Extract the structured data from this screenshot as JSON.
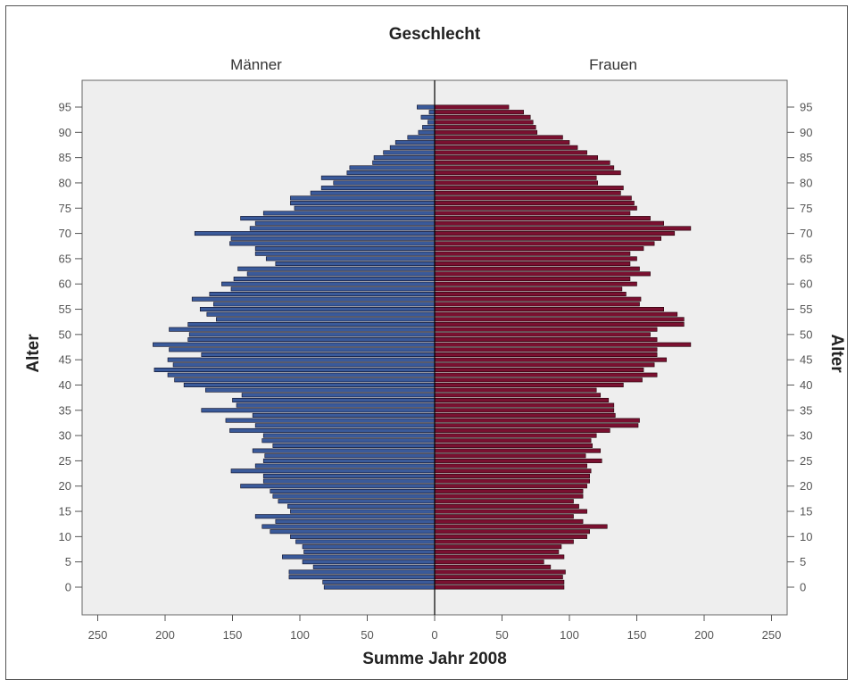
{
  "chart_data": {
    "type": "bar",
    "orientation": "horizontal-population-pyramid",
    "title": "Geschlecht",
    "xlabel": "Summe Jahr 2008",
    "ylabel": "Alter",
    "xlim": [
      0,
      250
    ],
    "ylim": [
      0,
      95
    ],
    "x_ticks": [
      "250",
      "200",
      "150",
      "100",
      "50",
      "0",
      "50",
      "100",
      "150",
      "200",
      "250"
    ],
    "y_ticks": [
      "0",
      "5",
      "10",
      "15",
      "20",
      "25",
      "30",
      "35",
      "40",
      "45",
      "50",
      "55",
      "60",
      "65",
      "70",
      "75",
      "80",
      "85",
      "90",
      "95"
    ],
    "categories": [
      0,
      1,
      2,
      3,
      4,
      5,
      6,
      7,
      8,
      9,
      10,
      11,
      12,
      13,
      14,
      15,
      16,
      17,
      18,
      19,
      20,
      21,
      22,
      23,
      24,
      25,
      26,
      27,
      28,
      29,
      30,
      31,
      32,
      33,
      34,
      35,
      36,
      37,
      38,
      39,
      40,
      41,
      42,
      43,
      44,
      45,
      46,
      47,
      48,
      49,
      50,
      51,
      52,
      53,
      54,
      55,
      56,
      57,
      58,
      59,
      60,
      61,
      62,
      63,
      64,
      65,
      66,
      67,
      68,
      69,
      70,
      71,
      72,
      73,
      74,
      75,
      76,
      77,
      78,
      79,
      80,
      81,
      82,
      83,
      84,
      85,
      86,
      87,
      88,
      89,
      90,
      91,
      92,
      93,
      94,
      95
    ],
    "grid": false,
    "series": [
      {
        "name": "Männer",
        "color": "#3a5a9a",
        "values": [
          82,
          83,
          108,
          108,
          90,
          98,
          113,
          97,
          98,
          103,
          107,
          122,
          128,
          118,
          133,
          107,
          109,
          116,
          120,
          122,
          144,
          127,
          127,
          151,
          133,
          127,
          126,
          135,
          120,
          128,
          127,
          152,
          133,
          155,
          135,
          173,
          147,
          150,
          143,
          170,
          186,
          193,
          198,
          208,
          194,
          198,
          173,
          197,
          209,
          183,
          182,
          197,
          183,
          162,
          169,
          174,
          164,
          180,
          167,
          151,
          158,
          149,
          139,
          146,
          118,
          125,
          133,
          133,
          152,
          151,
          178,
          137,
          133,
          144,
          127,
          104,
          107,
          107,
          92,
          84,
          75,
          84,
          65,
          63,
          46,
          45,
          38,
          33,
          29,
          20,
          12,
          9,
          5,
          10,
          4,
          13
        ]
      },
      {
        "name": "Frauen",
        "color": "#7a1030",
        "values": [
          96,
          96,
          95,
          97,
          86,
          81,
          96,
          92,
          94,
          103,
          113,
          115,
          128,
          110,
          103,
          113,
          107,
          103,
          110,
          110,
          113,
          115,
          115,
          116,
          113,
          124,
          112,
          123,
          117,
          116,
          120,
          130,
          151,
          152,
          134,
          133,
          133,
          129,
          123,
          120,
          140,
          154,
          165,
          155,
          163,
          172,
          165,
          165,
          190,
          165,
          160,
          165,
          185,
          185,
          180,
          170,
          152,
          153,
          142,
          139,
          150,
          145,
          160,
          152,
          145,
          150,
          145,
          155,
          163,
          168,
          178,
          190,
          170,
          160,
          145,
          150,
          148,
          146,
          138,
          140,
          121,
          120,
          138,
          133,
          130,
          121,
          113,
          106,
          100,
          95,
          76,
          75,
          73,
          71,
          66,
          55
        ]
      }
    ]
  },
  "layout": {
    "panel_bg": "#eeeeee",
    "male_color": "#3a5a9a",
    "female_color": "#7a1030"
  }
}
